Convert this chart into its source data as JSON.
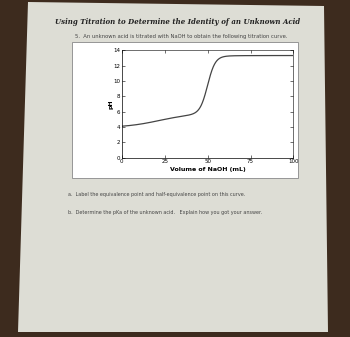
{
  "title_main": "Using Titration to Determine the Identity of an Unknown Acid",
  "problem_text": "5.  An unknown acid is titrated with NaOH to obtain the following titration curve.",
  "xlabel": "Volume of NaOH (mL)",
  "ylabel": "pH",
  "xlim": [
    0,
    100
  ],
  "ylim": [
    0,
    14
  ],
  "xticks": [
    0,
    25,
    50,
    75,
    100
  ],
  "yticks": [
    0,
    2,
    4,
    6,
    8,
    10,
    12,
    14
  ],
  "question_a": "a.  Label the equivalence point and half-equivalence point on this curve.",
  "question_b": "b.  Determine the pKa of the unknown acid.   Explain how you got your answer.",
  "curve_color": "#444444",
  "paper_color": "#ddddd5",
  "background_color": "#3d2b1e",
  "text_color": "#333333",
  "start_ph": 3.9,
  "end_ph": 13.3
}
